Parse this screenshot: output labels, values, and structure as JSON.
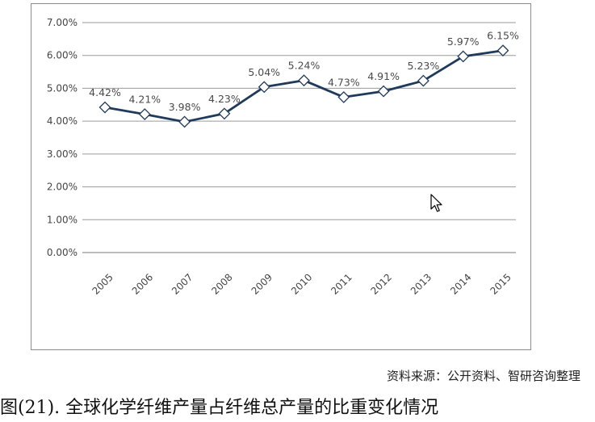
{
  "chart_data": {
    "type": "line",
    "title": "",
    "xlabel": "",
    "ylabel": "",
    "categories": [
      "2005",
      "2006",
      "2007",
      "2008",
      "2009",
      "2010",
      "2011",
      "2012",
      "2013",
      "2014",
      "2015"
    ],
    "values": [
      4.42,
      4.21,
      3.98,
      4.23,
      5.04,
      5.24,
      4.73,
      4.91,
      5.23,
      5.97,
      6.15
    ],
    "data_labels": [
      "4.42%",
      "4.21%",
      "3.98%",
      "4.23%",
      "5.04%",
      "5.24%",
      "4.73%",
      "4.91%",
      "5.23%",
      "5.97%",
      "6.15%"
    ],
    "ylim": [
      0,
      7
    ],
    "y_ticks": [
      "0.00%",
      "1.00%",
      "2.00%",
      "3.00%",
      "4.00%",
      "5.00%",
      "6.00%",
      "7.00%"
    ],
    "grid": "horizontal",
    "legend": "none",
    "marker": "diamond",
    "line_color": "#1f3a5a",
    "marker_fill": "#ffffff"
  },
  "source_note": "资料来源：公开资料、智研咨询整理",
  "caption": "图(21). 全球化学纤维产量占纤维总产量的比重变化情况"
}
